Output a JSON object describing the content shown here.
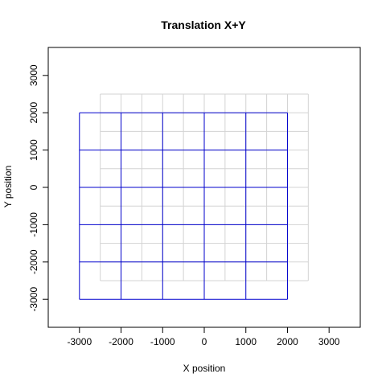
{
  "chart_data": {
    "type": "line",
    "title": "Translation X+Y",
    "xlabel": "X position",
    "ylabel": "Y position",
    "xlim": [
      -3750,
      3750
    ],
    "ylim": [
      -3750,
      3750
    ],
    "x_ticks": [
      -3000,
      -2000,
      -1000,
      0,
      1000,
      2000,
      3000
    ],
    "y_ticks": [
      -3000,
      -2000,
      -1000,
      0,
      1000,
      2000,
      3000
    ],
    "x_tick_labels": [
      "-3000",
      "-2000",
      "-1000",
      "0",
      "1000",
      "2000",
      "3000"
    ],
    "y_tick_labels": [
      "-3000",
      "-2000",
      "-1000",
      "0",
      "1000",
      "2000",
      "3000"
    ],
    "grid": false,
    "series": [
      {
        "color": "#d3d3d3",
        "x_lines": [
          -2500,
          -2000,
          -1500,
          -1000,
          -500,
          0,
          500,
          1000,
          1500,
          2000,
          2500
        ],
        "y_lines": [
          -2500,
          -2000,
          -1500,
          -1000,
          -500,
          0,
          500,
          1000,
          1500,
          2000,
          2500
        ],
        "x_extent": [
          -2500,
          2500
        ],
        "y_extent": [
          -2500,
          2500
        ]
      },
      {
        "color": "#0000cd",
        "x_lines": [
          -3000,
          -2000,
          -1000,
          0,
          1000,
          2000
        ],
        "y_lines": [
          -3000,
          -2000,
          -1000,
          0,
          1000,
          2000
        ],
        "x_extent": [
          -3000,
          2000
        ],
        "y_extent": [
          -3000,
          2000
        ]
      }
    ]
  }
}
